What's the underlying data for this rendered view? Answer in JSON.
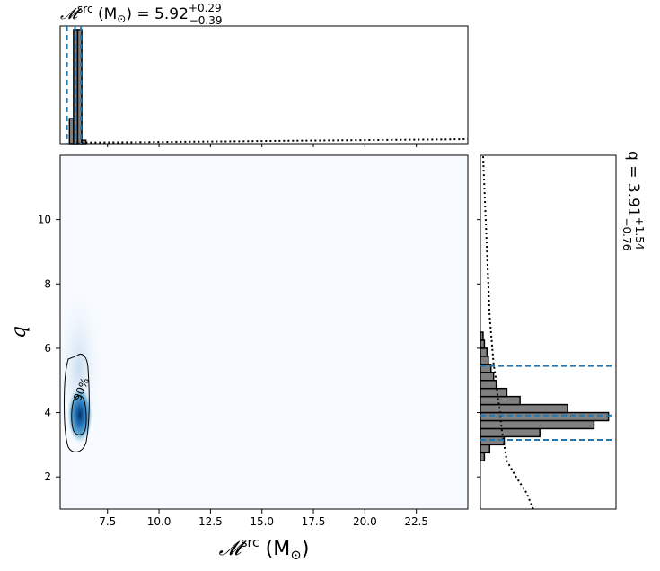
{
  "chart_data": {
    "type": "corner-plot",
    "main": {
      "type": "heatmap",
      "x_param": "chirp-mass-source",
      "y_param": "mass-ratio",
      "xlim": [
        5.2,
        25.0
      ],
      "ylim": [
        1.0,
        12.0
      ],
      "x_ticks": [
        "7.5",
        "10.0",
        "12.5",
        "15.0",
        "17.5",
        "20.0",
        "22.5"
      ],
      "y_ticks": [
        "2",
        "4",
        "6",
        "8",
        "10"
      ],
      "xlabel_symbol": "𝓜",
      "xlabel_sup": "src",
      "xlabel_unit": "(M",
      "xlabel_unit_sub": "⊙",
      "xlabel_close": ")",
      "ylabel": "q",
      "peak": {
        "x": 6.0,
        "y": 3.85
      },
      "contour_label": "90%",
      "colormap": "Blues"
    },
    "top": {
      "type": "histogram",
      "title_prefix": "𝓜",
      "title_sup": "src",
      "title_unit": "(M",
      "title_unit_sub": "⊙",
      "title_mid": ") = 5.92",
      "title_upper": "+0.29",
      "title_lower": "−0.39",
      "median": 5.92,
      "lower": 5.53,
      "upper": 6.21,
      "bins_x": [
        5.65,
        5.85,
        6.05,
        6.25,
        6.45
      ],
      "bins_density": [
        0.22,
        1.0,
        1.0,
        0.03
      ],
      "prior_x": [
        6.0,
        8.0,
        10.0,
        12.0,
        14.0,
        16.0,
        18.0,
        20.0,
        22.0,
        24.0,
        25.0
      ],
      "prior_density": [
        0.01,
        0.012,
        0.015,
        0.018,
        0.021,
        0.025,
        0.028,
        0.031,
        0.034,
        0.037,
        0.04
      ]
    },
    "right": {
      "type": "histogram",
      "orientation": "horizontal",
      "label_prefix": "q = 3.91",
      "label_upper": "+1.54",
      "label_lower": "−0.76",
      "median": 3.91,
      "lower": 3.15,
      "upper": 5.45,
      "bins_y": [
        2.5,
        2.75,
        3.0,
        3.25,
        3.5,
        3.75,
        4.0,
        4.25,
        4.5,
        4.75,
        5.0,
        5.25,
        5.5,
        5.75,
        6.0,
        6.25,
        6.5
      ],
      "bins_density": [
        0.03,
        0.07,
        0.18,
        0.45,
        0.86,
        0.97,
        0.66,
        0.3,
        0.2,
        0.12,
        0.1,
        0.08,
        0.06,
        0.05,
        0.03,
        0.02
      ],
      "prior_y": [
        1.0,
        1.5,
        2.0,
        2.5,
        3.0,
        3.5,
        4.0,
        4.5,
        5.0,
        5.5,
        6.0,
        7.0,
        8.0,
        9.0,
        10.0,
        11.0,
        12.0
      ],
      "prior_density": [
        0.4,
        0.35,
        0.27,
        0.2,
        0.18,
        0.16,
        0.15,
        0.13,
        0.12,
        0.1,
        0.09,
        0.07,
        0.06,
        0.05,
        0.04,
        0.03,
        0.02
      ]
    },
    "colors": {
      "histogram": "#808080",
      "quantile_line": "#1f77b4",
      "heat_low": "#f7fbff",
      "heat_high": "#08519c"
    }
  }
}
